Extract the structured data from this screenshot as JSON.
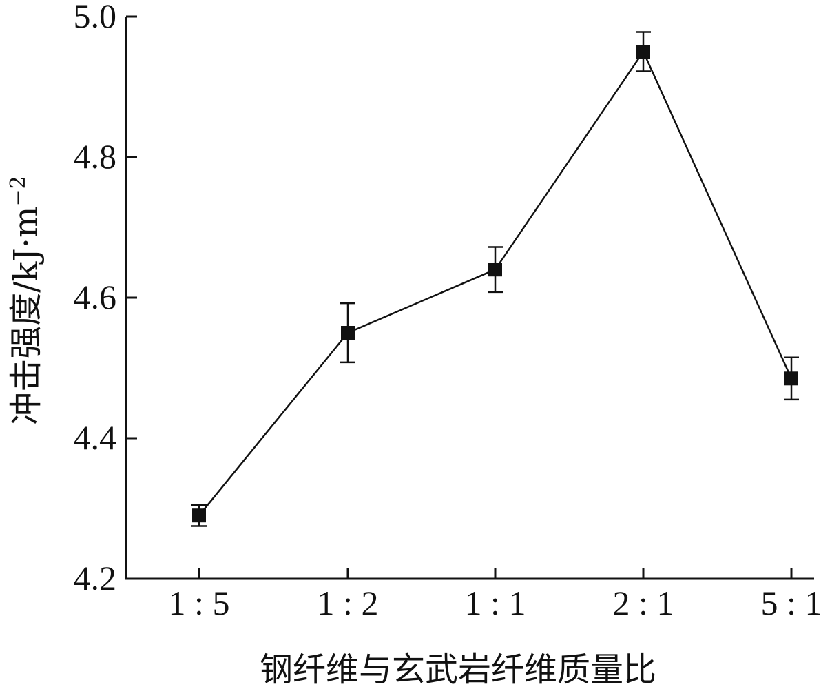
{
  "chart_data": {
    "type": "line",
    "categories": [
      "1:5",
      "1:2",
      "1:1",
      "2:1",
      "5:1"
    ],
    "series": [
      {
        "values": [
          4.29,
          4.55,
          4.64,
          4.95,
          4.485
        ],
        "errors": [
          0.015,
          0.042,
          0.032,
          0.028,
          0.03
        ]
      }
    ],
    "xlabel": "钢纤维与玄武岩纤维质量比",
    "ylabel": "冲击强度/kJ·m",
    "ylabel_superscript": "−2",
    "ylim": [
      4.2,
      5.0
    ],
    "yticks": [
      4.2,
      4.4,
      4.6,
      4.8,
      5.0
    ],
    "ytick_labels": [
      "4.2",
      "4.4",
      "4.6",
      "4.8",
      "5.0"
    ],
    "grid": false,
    "marker": "square",
    "color": "#111111"
  }
}
